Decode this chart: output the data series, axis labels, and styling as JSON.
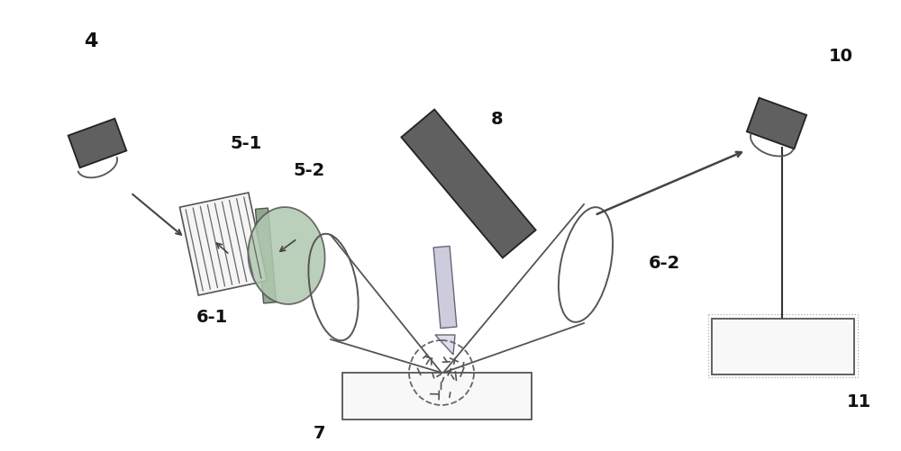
{
  "bg_color": "#ffffff",
  "dgray": "#606060",
  "mgray": "#909090",
  "lgray": "#c0c0c0",
  "line_color": "#444444",
  "label_fs": 14
}
